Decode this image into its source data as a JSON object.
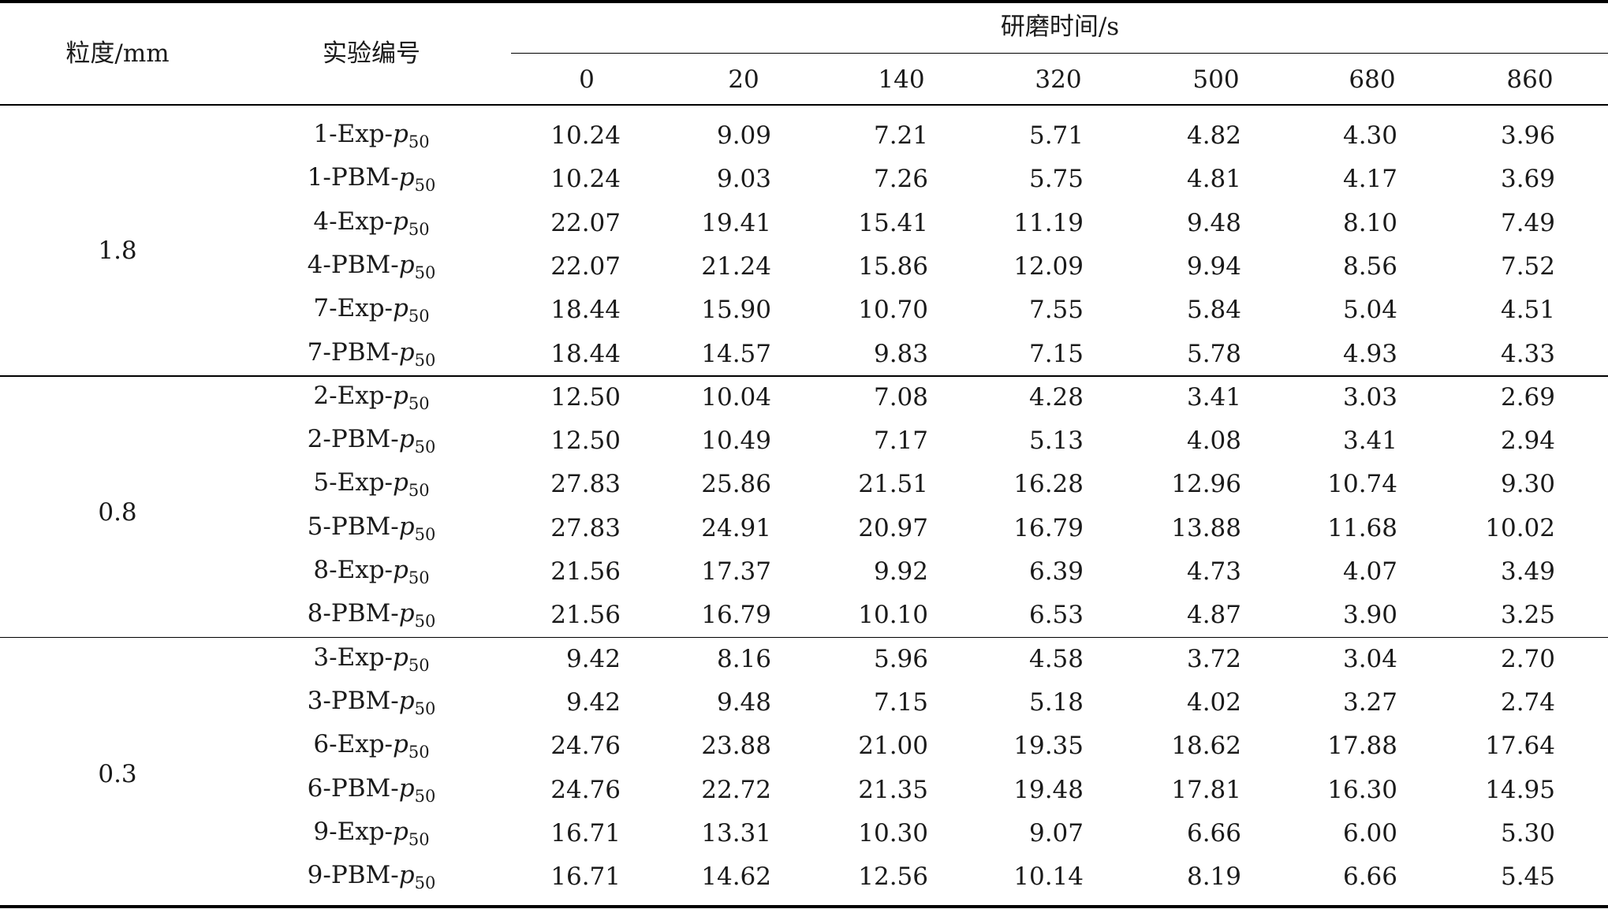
{
  "table": {
    "header": {
      "size_col": "粒度/mm",
      "exp_col": "实验编号",
      "time_group": "研磨时间/s",
      "times": [
        "0",
        "20",
        "140",
        "320",
        "500",
        "680",
        "860"
      ]
    },
    "groups": [
      {
        "size": "1.8",
        "rows": [
          {
            "id": "1-Exp-",
            "sym": "p",
            "sub": "50",
            "values": [
              "10.24",
              "9.09",
              "7.21",
              "5.71",
              "4.82",
              "4.30",
              "3.96"
            ]
          },
          {
            "id": "1-PBM-",
            "sym": "p",
            "sub": "50",
            "values": [
              "10.24",
              "9.03",
              "7.26",
              "5.75",
              "4.81",
              "4.17",
              "3.69"
            ]
          },
          {
            "id": "4-Exp-",
            "sym": "p",
            "sub": "50",
            "values": [
              "22.07",
              "19.41",
              "15.41",
              "11.19",
              "9.48",
              "8.10",
              "7.49"
            ]
          },
          {
            "id": "4-PBM-",
            "sym": "p",
            "sub": "50",
            "values": [
              "22.07",
              "21.24",
              "15.86",
              "12.09",
              "9.94",
              "8.56",
              "7.52"
            ]
          },
          {
            "id": "7-Exp-",
            "sym": "p",
            "sub": "50",
            "values": [
              "18.44",
              "15.90",
              "10.70",
              "7.55",
              "5.84",
              "5.04",
              "4.51"
            ]
          },
          {
            "id": "7-PBM-",
            "sym": "p",
            "sub": "50",
            "values": [
              "18.44",
              "14.57",
              "9.83",
              "7.15",
              "5.78",
              "4.93",
              "4.33"
            ]
          }
        ]
      },
      {
        "size": "0.8",
        "rows": [
          {
            "id": "2-Exp-",
            "sym": "p",
            "sub": "50",
            "values": [
              "12.50",
              "10.04",
              "7.08",
              "4.28",
              "3.41",
              "3.03",
              "2.69"
            ]
          },
          {
            "id": "2-PBM-",
            "sym": "p",
            "sub": "50",
            "values": [
              "12.50",
              "10.49",
              "7.17",
              "5.13",
              "4.08",
              "3.41",
              "2.94"
            ]
          },
          {
            "id": "5-Exp-",
            "sym": "p",
            "sub": "50",
            "values": [
              "27.83",
              "25.86",
              "21.51",
              "16.28",
              "12.96",
              "10.74",
              "9.30"
            ]
          },
          {
            "id": "5-PBM-",
            "sym": "p",
            "sub": "50",
            "values": [
              "27.83",
              "24.91",
              "20.97",
              "16.79",
              "13.88",
              "11.68",
              "10.02"
            ]
          },
          {
            "id": "8-Exp-",
            "sym": "p",
            "sub": "50",
            "values": [
              "21.56",
              "17.37",
              "9.92",
              "6.39",
              "4.73",
              "4.07",
              "3.49"
            ]
          },
          {
            "id": "8-PBM-",
            "sym": "p",
            "sub": "50",
            "values": [
              "21.56",
              "16.79",
              "10.10",
              "6.53",
              "4.87",
              "3.90",
              "3.25"
            ]
          }
        ]
      },
      {
        "size": "0.3",
        "rows": [
          {
            "id": "3-Exp-",
            "sym": "p",
            "sub": "50",
            "values": [
              "9.42",
              "8.16",
              "5.96",
              "4.58",
              "3.72",
              "3.04",
              "2.70"
            ]
          },
          {
            "id": "3-PBM-",
            "sym": "p",
            "sub": "50",
            "values": [
              "9.42",
              "9.48",
              "7.15",
              "5.18",
              "4.02",
              "3.27",
              "2.74"
            ]
          },
          {
            "id": "6-Exp-",
            "sym": "p",
            "sub": "50",
            "values": [
              "24.76",
              "23.88",
              "21.00",
              "19.35",
              "18.62",
              "17.88",
              "17.64"
            ]
          },
          {
            "id": "6-PBM-",
            "sym": "p",
            "sub": "50",
            "values": [
              "24.76",
              "22.72",
              "21.35",
              "19.48",
              "17.81",
              "16.30",
              "14.95"
            ]
          },
          {
            "id": "9-Exp-",
            "sym": "p",
            "sub": "50",
            "values": [
              "16.71",
              "13.31",
              "10.30",
              "9.07",
              "6.66",
              "6.00",
              "5.30"
            ]
          },
          {
            "id": "9-PBM-",
            "sym": "p",
            "sub": "50",
            "values": [
              "16.71",
              "14.62",
              "12.56",
              "10.14",
              "8.19",
              "6.66",
              "5.45"
            ]
          }
        ]
      }
    ]
  }
}
